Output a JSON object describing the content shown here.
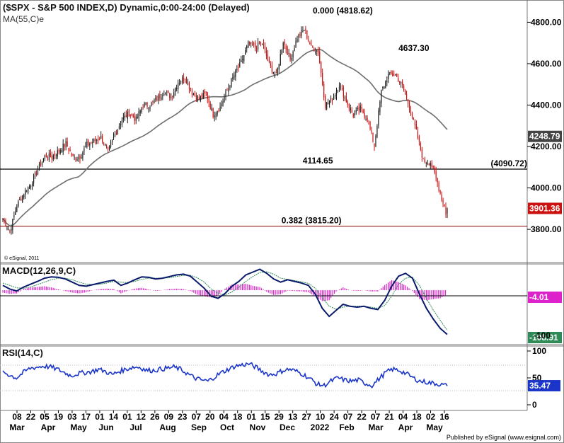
{
  "header": {
    "title": "($SPX - S&P 500 INDEX,D) Dynamic,0:00-24:00 (Delayed)",
    "ma_label": "MA(55,C)e",
    "copyright": "© eSignal, 2011",
    "footer": "Published by eSignal (www.esignal.com)"
  },
  "colors": {
    "up": "#1a1a1a",
    "down": "#cc1111",
    "ma": "#6e6e6e",
    "macd": "#0a1a6b",
    "signal": "#2e8b57",
    "hist": "#dd22cc",
    "rsi": "#1a35c8",
    "level_line": "#8b0000"
  },
  "chart_data": [
    {
      "type": "candlestick",
      "title": "($SPX - S&P 500 INDEX,D) Dynamic,0:00-24:00 (Delayed)",
      "ylim": [
        3650,
        4880
      ],
      "yticks": [
        "4800.00",
        "4600.00",
        "4400.00",
        "4200.00",
        "4000.00",
        "3800.00"
      ],
      "price_tags": [
        {
          "label": "4248.79",
          "value": 4248.79,
          "color": "#444444"
        },
        {
          "label": "3901.36",
          "value": 3901.36,
          "color": "#cc1111"
        }
      ],
      "annotations": [
        {
          "text": "0.000 (4818.62)",
          "x": "2022-01-04",
          "value": 4818.62
        },
        {
          "text": "4637.30",
          "x": "2022-03-29",
          "value": 4637.3
        },
        {
          "text": "(4090.72)",
          "x": "2022-05-16",
          "value": 4090.72
        },
        {
          "text": "4114.65",
          "x": "2022-01-01",
          "value": 4114.65
        },
        {
          "text": "0.382 (3815.20)",
          "x": "2022-01-01",
          "value": 3815.2
        }
      ],
      "hlines": [
        4090.72,
        3815.2
      ],
      "ma_series_name": "MA(55,C)e",
      "closes_weekly": [
        {
          "d": "2021-03-01",
          "c": 3850
        },
        {
          "d": "2021-03-08",
          "c": 3790
        },
        {
          "d": "2021-03-15",
          "c": 3915
        },
        {
          "d": "2021-03-22",
          "c": 3975
        },
        {
          "d": "2021-03-29",
          "c": 4020
        },
        {
          "d": "2021-04-05",
          "c": 4090
        },
        {
          "d": "2021-04-12",
          "c": 4155
        },
        {
          "d": "2021-04-19",
          "c": 4150
        },
        {
          "d": "2021-04-26",
          "c": 4180
        },
        {
          "d": "2021-05-03",
          "c": 4215
        },
        {
          "d": "2021-05-10",
          "c": 4145
        },
        {
          "d": "2021-05-17",
          "c": 4150
        },
        {
          "d": "2021-05-24",
          "c": 4210
        },
        {
          "d": "2021-05-31",
          "c": 4225
        },
        {
          "d": "2021-06-07",
          "c": 4245
        },
        {
          "d": "2021-06-14",
          "c": 4175
        },
        {
          "d": "2021-06-21",
          "c": 4260
        },
        {
          "d": "2021-06-28",
          "c": 4330
        },
        {
          "d": "2021-07-05",
          "c": 4360
        },
        {
          "d": "2021-07-12",
          "c": 4330
        },
        {
          "d": "2021-07-19",
          "c": 4400
        },
        {
          "d": "2021-07-26",
          "c": 4400
        },
        {
          "d": "2021-08-02",
          "c": 4430
        },
        {
          "d": "2021-08-09",
          "c": 4465
        },
        {
          "d": "2021-08-16",
          "c": 4440
        },
        {
          "d": "2021-08-23",
          "c": 4510
        },
        {
          "d": "2021-08-30",
          "c": 4535
        },
        {
          "d": "2021-09-06",
          "c": 4460
        },
        {
          "d": "2021-09-13",
          "c": 4430
        },
        {
          "d": "2021-09-20",
          "c": 4455
        },
        {
          "d": "2021-09-27",
          "c": 4355
        },
        {
          "d": "2021-10-04",
          "c": 4390
        },
        {
          "d": "2021-10-11",
          "c": 4470
        },
        {
          "d": "2021-10-18",
          "c": 4545
        },
        {
          "d": "2021-10-25",
          "c": 4605
        },
        {
          "d": "2021-11-01",
          "c": 4695
        },
        {
          "d": "2021-11-08",
          "c": 4680
        },
        {
          "d": "2021-11-15",
          "c": 4700
        },
        {
          "d": "2021-11-22",
          "c": 4595
        },
        {
          "d": "2021-11-29",
          "c": 4540
        },
        {
          "d": "2021-12-06",
          "c": 4710
        },
        {
          "d": "2021-12-13",
          "c": 4620
        },
        {
          "d": "2021-12-20",
          "c": 4725
        },
        {
          "d": "2021-12-27",
          "c": 4766
        },
        {
          "d": "2022-01-03",
          "c": 4680
        },
        {
          "d": "2022-01-10",
          "c": 4660
        },
        {
          "d": "2022-01-17",
          "c": 4400
        },
        {
          "d": "2022-01-24",
          "c": 4430
        },
        {
          "d": "2022-01-31",
          "c": 4500
        },
        {
          "d": "2022-02-07",
          "c": 4420
        },
        {
          "d": "2022-02-14",
          "c": 4350
        },
        {
          "d": "2022-02-21",
          "c": 4385
        },
        {
          "d": "2022-02-28",
          "c": 4330
        },
        {
          "d": "2022-03-07",
          "c": 4205
        },
        {
          "d": "2022-03-14",
          "c": 4465
        },
        {
          "d": "2022-03-21",
          "c": 4545
        },
        {
          "d": "2022-03-28",
          "c": 4545
        },
        {
          "d": "2022-04-04",
          "c": 4490
        },
        {
          "d": "2022-04-11",
          "c": 4390
        },
        {
          "d": "2022-04-18",
          "c": 4270
        },
        {
          "d": "2022-04-25",
          "c": 4130
        },
        {
          "d": "2022-05-02",
          "c": 4125
        },
        {
          "d": "2022-05-09",
          "c": 4025
        },
        {
          "d": "2022-05-16",
          "c": 3901
        }
      ]
    },
    {
      "type": "line",
      "title": "MACD(12,26,9,C)",
      "ylim": [
        -130,
        60
      ],
      "price_tags": [
        {
          "label": "-4.01",
          "value": -4.01,
          "color": "#dd22cc"
        },
        {
          "label": "-108.91",
          "value": -108.91,
          "color": "#2e8b57"
        }
      ],
      "zero_tick": "-100",
      "series": [
        {
          "values": [
            12,
            3,
            -2,
            8,
            15,
            22,
            30,
            33,
            32,
            28,
            20,
            12,
            10,
            14,
            18,
            22,
            25,
            12,
            18,
            26,
            33,
            32,
            28,
            30,
            34,
            38,
            40,
            35,
            20,
            5,
            -15,
            -20,
            -8,
            10,
            22,
            38,
            45,
            52,
            42,
            28,
            20,
            26,
            22,
            18,
            12,
            -10,
            -45,
            -65,
            -50,
            -35,
            -40,
            -42,
            -40,
            -45,
            -48,
            -25,
            10,
            35,
            42,
            30,
            -10,
            -45,
            -72,
            -95,
            -110
          ]
        },
        {
          "values": [
            18,
            12,
            6,
            5,
            8,
            14,
            20,
            26,
            30,
            30,
            26,
            20,
            15,
            14,
            15,
            18,
            22,
            20,
            19,
            22,
            27,
            30,
            30,
            30,
            31,
            34,
            37,
            37,
            31,
            20,
            3,
            -8,
            -12,
            -4,
            8,
            22,
            34,
            44,
            46,
            40,
            30,
            27,
            24,
            21,
            17,
            5,
            -18,
            -40,
            -47,
            -42,
            -40,
            -40,
            -40,
            -42,
            -45,
            -38,
            -15,
            15,
            30,
            32,
            12,
            -20,
            -50,
            -75,
            -100
          ]
        }
      ]
    },
    {
      "type": "line",
      "title": "RSI(14,C)",
      "ylim": [
        0,
        100
      ],
      "yticks": [
        "100",
        "50",
        "0"
      ],
      "price_tags": [
        {
          "label": "35.47",
          "value": 35.47,
          "color": "#1a35c8"
        }
      ],
      "series": [
        {
          "values": [
            62,
            55,
            50,
            60,
            68,
            70,
            72,
            70,
            66,
            60,
            54,
            58,
            60,
            62,
            66,
            62,
            56,
            62,
            66,
            70,
            70,
            64,
            64,
            66,
            68,
            70,
            66,
            58,
            50,
            46,
            44,
            52,
            60,
            66,
            72,
            74,
            76,
            70,
            62,
            56,
            58,
            64,
            66,
            62,
            56,
            48,
            38,
            36,
            44,
            50,
            46,
            44,
            46,
            40,
            36,
            48,
            60,
            66,
            64,
            58,
            50,
            44,
            42,
            40,
            38,
            35
          ]
        }
      ]
    }
  ],
  "x_axis": {
    "day_labels": [
      "08",
      "22",
      "05",
      "19",
      "03",
      "17",
      "01",
      "14",
      "01",
      "12",
      "26",
      "09",
      "23",
      "07",
      "20",
      "04",
      "18",
      "01",
      "15",
      "29",
      "13",
      "27",
      "10",
      "24",
      "07",
      "22",
      "07",
      "21",
      "04",
      "18",
      "02",
      "16"
    ],
    "month_labels": [
      "Mar",
      "Apr",
      "May",
      "Jun",
      "Jul",
      "Aug",
      "Sep",
      "Oct",
      "Nov",
      "Dec",
      "2022",
      "Feb",
      "Mar",
      "Apr",
      "May"
    ]
  }
}
